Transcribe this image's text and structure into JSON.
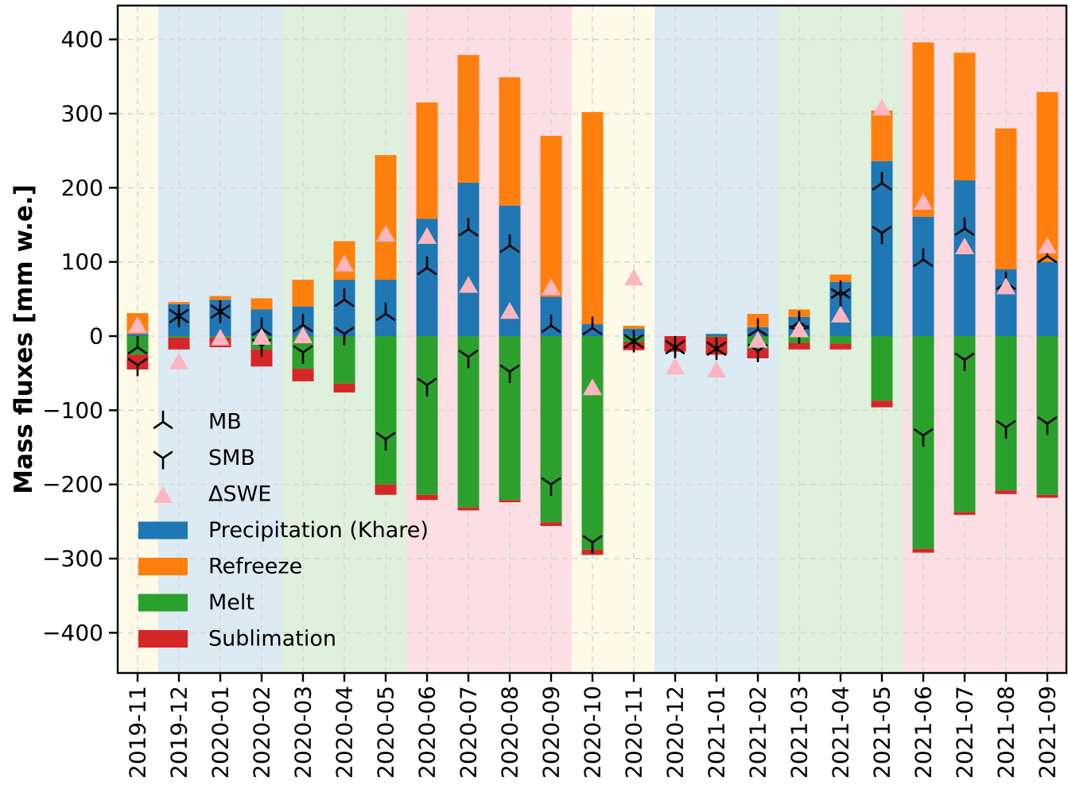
{
  "chart_data": {
    "type": "bar",
    "title": "",
    "xlabel": "",
    "ylabel": "Mass fluxes [mm w.e.]",
    "ylim": [
      -454,
      446
    ],
    "yticks": [
      400,
      300,
      200,
      100,
      0,
      -100,
      -200,
      -300,
      -400
    ],
    "grid": "dashed-both-axes",
    "legend_position": "center-left-inside",
    "categories": [
      "2019-11",
      "2019-12",
      "2020-01",
      "2020-02",
      "2020-03",
      "2020-04",
      "2020-05",
      "2020-06",
      "2020-07",
      "2020-08",
      "2020-09",
      "2020-10",
      "2020-11",
      "2020-12",
      "2021-01",
      "2021-02",
      "2021-03",
      "2021-04",
      "2021-05",
      "2021-06",
      "2021-07",
      "2021-08",
      "2021-09"
    ],
    "series": [
      {
        "name": "Precipitation (Khare)",
        "color": "#1f77b4",
        "stack": "positive",
        "values": [
          3,
          43,
          49,
          36,
          40,
          76,
          76,
          158,
          207,
          176,
          53,
          16,
          10,
          0,
          3,
          12,
          26,
          73,
          236,
          161,
          210,
          90,
          100
        ]
      },
      {
        "name": "Refreeze",
        "color": "#ff7f0e",
        "stack": "positive",
        "values": [
          28,
          3,
          5,
          15,
          36,
          52,
          168,
          157,
          172,
          173,
          217,
          286,
          4,
          0,
          0,
          18,
          10,
          10,
          68,
          235,
          172,
          190,
          229
        ]
      },
      {
        "name": "Melt",
        "color": "#2ca02c",
        "stack": "negative",
        "values": [
          -25,
          -2,
          -2,
          -18,
          -44,
          -64,
          -200,
          -214,
          -231,
          -221,
          -251,
          -288,
          -8,
          0,
          -1,
          -17,
          -9,
          -10,
          -87,
          -287,
          -237,
          -208,
          -214
        ]
      },
      {
        "name": "Sublimation",
        "color": "#d62728",
        "stack": "negative",
        "values": [
          -20,
          -16,
          -13,
          -23,
          -17,
          -12,
          -14,
          -7,
          -4,
          -3,
          -5,
          -7,
          -11,
          -21,
          -24,
          -13,
          -9,
          -8,
          -9,
          -5,
          -4,
          -5,
          -4
        ]
      }
    ],
    "markers": [
      {
        "name": "MB",
        "glyph": "tri-down",
        "color": "#000000",
        "values": [
          -15,
          27,
          33,
          10,
          15,
          49,
          30,
          92,
          144,
          122,
          14,
          11,
          -7,
          -15,
          -17,
          9,
          19,
          60,
          206,
          103,
          145,
          72,
          108
        ]
      },
      {
        "name": "SMB",
        "glyph": "tri-up",
        "color": "#000000",
        "values": [
          -39,
          27,
          33,
          -13,
          -22,
          3,
          -139,
          -66,
          -28,
          -48,
          -200,
          -278,
          -7,
          -15,
          -17,
          -20,
          5,
          55,
          139,
          -134,
          -32,
          -123,
          -118
        ]
      },
      {
        "name": "ΔSWE",
        "glyph": "filled-triangle-up",
        "color": "#ffb6c1",
        "values": [
          14,
          -35,
          -3,
          -2,
          0,
          97,
          137,
          134,
          68,
          33,
          65,
          -70,
          78,
          -42,
          -46,
          -6,
          8,
          28,
          307,
          180,
          120,
          66,
          121
        ]
      }
    ],
    "background_bands": [
      {
        "start": 0,
        "end": 0,
        "color": "#fdfbe8"
      },
      {
        "start": 1,
        "end": 3,
        "color": "#dceaf3"
      },
      {
        "start": 4,
        "end": 6,
        "color": "#dff0dc"
      },
      {
        "start": 7,
        "end": 10,
        "color": "#fbdfe4"
      },
      {
        "start": 11,
        "end": 12,
        "color": "#fdfbe8"
      },
      {
        "start": 13,
        "end": 15,
        "color": "#dceaf3"
      },
      {
        "start": 16,
        "end": 18,
        "color": "#dff0dc"
      },
      {
        "start": 19,
        "end": 22,
        "color": "#fbdfe4"
      }
    ],
    "legend": [
      {
        "label": "MB",
        "glyph": "tri-down"
      },
      {
        "label": "SMB",
        "glyph": "tri-up"
      },
      {
        "label": "ΔSWE",
        "glyph": "filled-triangle-up"
      },
      {
        "label": "Precipitation (Khare)",
        "swatch": "#1f77b4"
      },
      {
        "label": "Refreeze",
        "swatch": "#ff7f0e"
      },
      {
        "label": "Melt",
        "swatch": "#2ca02c"
      },
      {
        "label": "Sublimation",
        "swatch": "#d62728"
      }
    ],
    "colors": {
      "axis": "#000000",
      "grid": "#d9d9d9",
      "tick_label": "#000000",
      "dswe_pink": "#ffb6c1"
    }
  }
}
